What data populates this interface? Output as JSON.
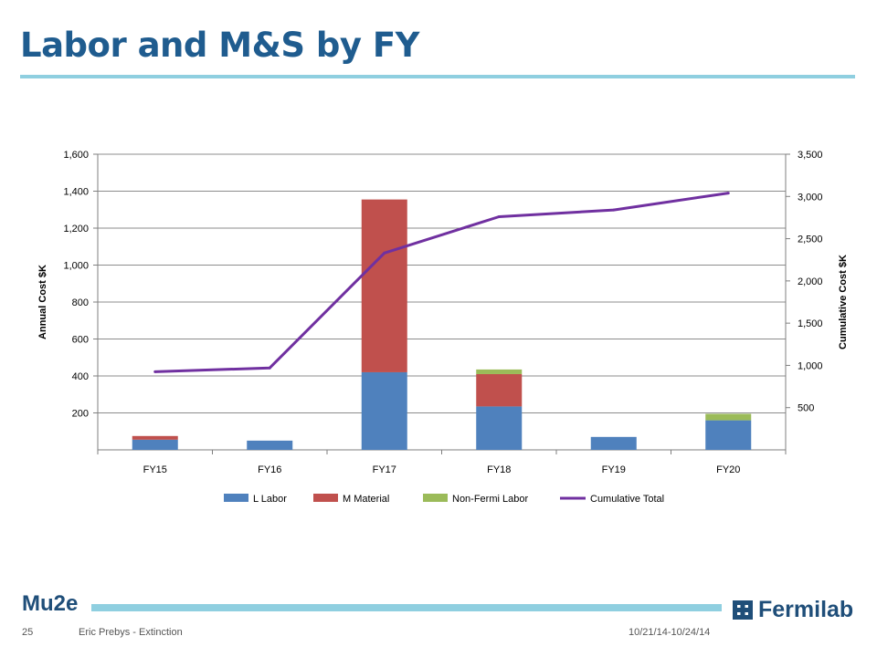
{
  "slide": {
    "title": "Labor and M&S by FY"
  },
  "footer": {
    "left_logo": "Mu2e",
    "page_number": "25",
    "author": "Eric Prebys - Extinction",
    "dates": "10/21/14-10/24/14",
    "right_logo": "Fermilab"
  },
  "colors": {
    "title": "#1f5c8f",
    "accent_rule": "#8fcfe0",
    "l_labor": "#4f81bd",
    "m_material": "#c0504d",
    "non_fermi_labor": "#9bbb59",
    "cumulative_total": "#7030a0"
  },
  "chart_data": {
    "type": "bar",
    "stacked": true,
    "title": "",
    "categories": [
      "FY15",
      "FY16",
      "FY17",
      "FY18",
      "FY19",
      "FY20"
    ],
    "ylabel": "Annual Cost $K",
    "ylim": [
      0,
      1600
    ],
    "y_ticks": [
      "200",
      "400",
      "600",
      "800",
      "1,000",
      "1,200",
      "1,400",
      "1,600"
    ],
    "y2label": "Cumulative Cost $K",
    "y2lim": [
      0,
      3500
    ],
    "y2_ticks": [
      "500",
      "1,000",
      "1,500",
      "2,000",
      "2,500",
      "3,000",
      "3,500"
    ],
    "grid": true,
    "legend_position": "bottom",
    "series": [
      {
        "name": "L Labor",
        "type": "bar",
        "axis": "left",
        "values": [
          55,
          50,
          420,
          235,
          70,
          160
        ]
      },
      {
        "name": "M Material",
        "type": "bar",
        "axis": "left",
        "values": [
          20,
          0,
          935,
          175,
          0,
          0
        ]
      },
      {
        "name": "Non-Fermi Labor",
        "type": "bar",
        "axis": "left",
        "values": [
          0,
          0,
          0,
          25,
          0,
          35
        ]
      },
      {
        "name": "Cumulative Total",
        "type": "line",
        "axis": "right",
        "values": [
          925,
          970,
          2330,
          2760,
          2840,
          3040
        ]
      }
    ]
  }
}
